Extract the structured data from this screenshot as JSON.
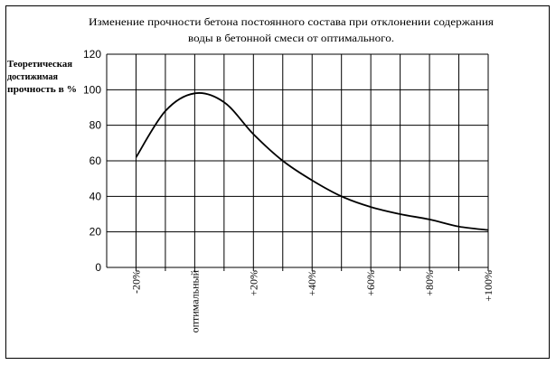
{
  "chart_data": {
    "type": "line",
    "title_lines": [
      "Изменение прочности бетона постоянного состава при отклонении содержания",
      "воды в бетонной смеси от оптимального."
    ],
    "ylabel_lines": [
      "Теоретическая",
      "достижимая",
      "прочность в %"
    ],
    "xlabel": "",
    "ylim": [
      0,
      120
    ],
    "yticks": [
      0,
      20,
      40,
      60,
      80,
      100,
      120
    ],
    "categories": [
      "-20%",
      "оптимальный",
      "+20%",
      "+40%",
      "+60%",
      "+80%",
      "+100%"
    ],
    "x": [
      -20,
      -10,
      0,
      10,
      20,
      30,
      40,
      50,
      60,
      70,
      80,
      90,
      100
    ],
    "grid": true,
    "legend": "none",
    "series": [
      {
        "values": [
          62,
          88,
          98,
          93,
          75,
          60,
          49,
          40,
          34,
          30,
          27,
          23,
          21
        ],
        "color": "#000000"
      }
    ]
  }
}
